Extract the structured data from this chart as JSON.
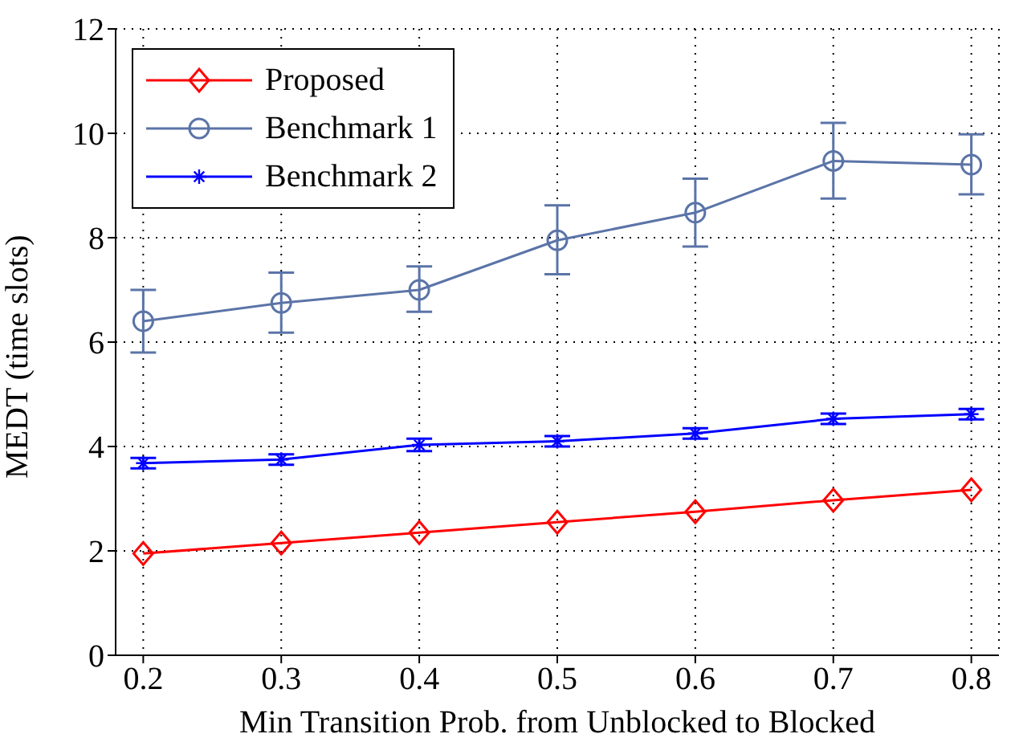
{
  "chart_data": {
    "type": "line",
    "xlabel": "Min Transition Prob. from Unblocked to Blocked",
    "ylabel": "MEDT (time slots)",
    "x": [
      0.2,
      0.3,
      0.4,
      0.5,
      0.6,
      0.7,
      0.8
    ],
    "series": [
      {
        "name": "Proposed",
        "color": "#ff0000",
        "marker": "diamond",
        "values": [
          1.95,
          2.15,
          2.35,
          2.55,
          2.75,
          2.97,
          3.17
        ]
      },
      {
        "name": "Benchmark 1",
        "color": "#5b74a8",
        "marker": "circle",
        "values": [
          6.4,
          6.75,
          7.0,
          7.95,
          8.48,
          9.47,
          9.4
        ],
        "errors": [
          [
            5.8,
            7.0
          ],
          [
            6.18,
            7.33
          ],
          [
            6.58,
            7.45
          ],
          [
            7.3,
            8.62
          ],
          [
            7.83,
            9.13
          ],
          [
            8.75,
            10.2
          ],
          [
            8.83,
            9.98
          ]
        ]
      },
      {
        "name": "Benchmark 2",
        "color": "#0000ff",
        "marker": "cross",
        "values": [
          3.68,
          3.75,
          4.03,
          4.1,
          4.25,
          4.53,
          4.62
        ],
        "errors": [
          0.1,
          0.1,
          0.12,
          0.1,
          0.1,
          0.1,
          0.1
        ]
      }
    ],
    "xlim": [
      0.18,
      0.82
    ],
    "xticks": [
      {
        "value": 0.2,
        "label": "0.2"
      },
      {
        "value": 0.3,
        "label": "0.3"
      },
      {
        "value": 0.4,
        "label": "0.4"
      },
      {
        "value": 0.5,
        "label": "0.5"
      },
      {
        "value": 0.6,
        "label": "0.6"
      },
      {
        "value": 0.7,
        "label": "0.7"
      },
      {
        "value": 0.8,
        "label": "0.8"
      }
    ],
    "ylim": [
      0,
      12
    ],
    "yticks": [
      0,
      2,
      4,
      6,
      8,
      10,
      12
    ],
    "grid": true,
    "legend": "top left",
    "line_style": "solid"
  }
}
